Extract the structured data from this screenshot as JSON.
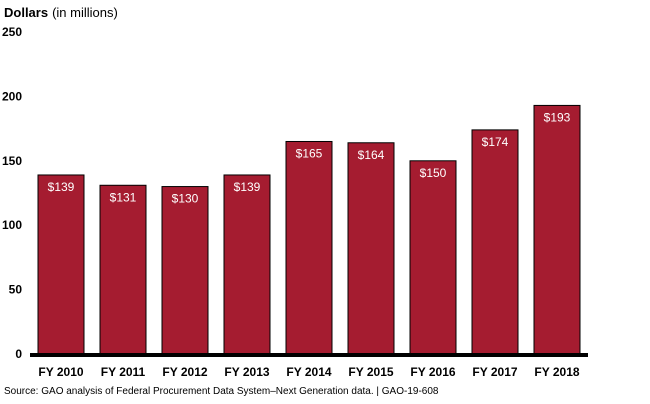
{
  "chart_data": {
    "type": "bar",
    "ylabel": "Dollars",
    "ylabel_unit": "(in millions)",
    "categories": [
      "FY 2010",
      "FY 2011",
      "FY 2012",
      "FY 2013",
      "FY 2014",
      "FY 2015",
      "FY 2016",
      "FY 2017",
      "FY 2018"
    ],
    "values": [
      139,
      131,
      130,
      139,
      165,
      164,
      150,
      174,
      193
    ],
    "data_labels": [
      "$139",
      "$131",
      "$130",
      "$139",
      "$165",
      "$164",
      "$150",
      "$174",
      "$193"
    ],
    "yticks": [
      0,
      50,
      100,
      150,
      200,
      250
    ],
    "ylim": [
      0,
      250
    ],
    "grid": false,
    "colors": {
      "bar": "#a51c30",
      "bar_stroke": "#000000",
      "baseline": "#000000"
    }
  },
  "source": "Source: GAO analysis of Federal Procurement Data System–Next Generation data.  |  GAO-19-608"
}
